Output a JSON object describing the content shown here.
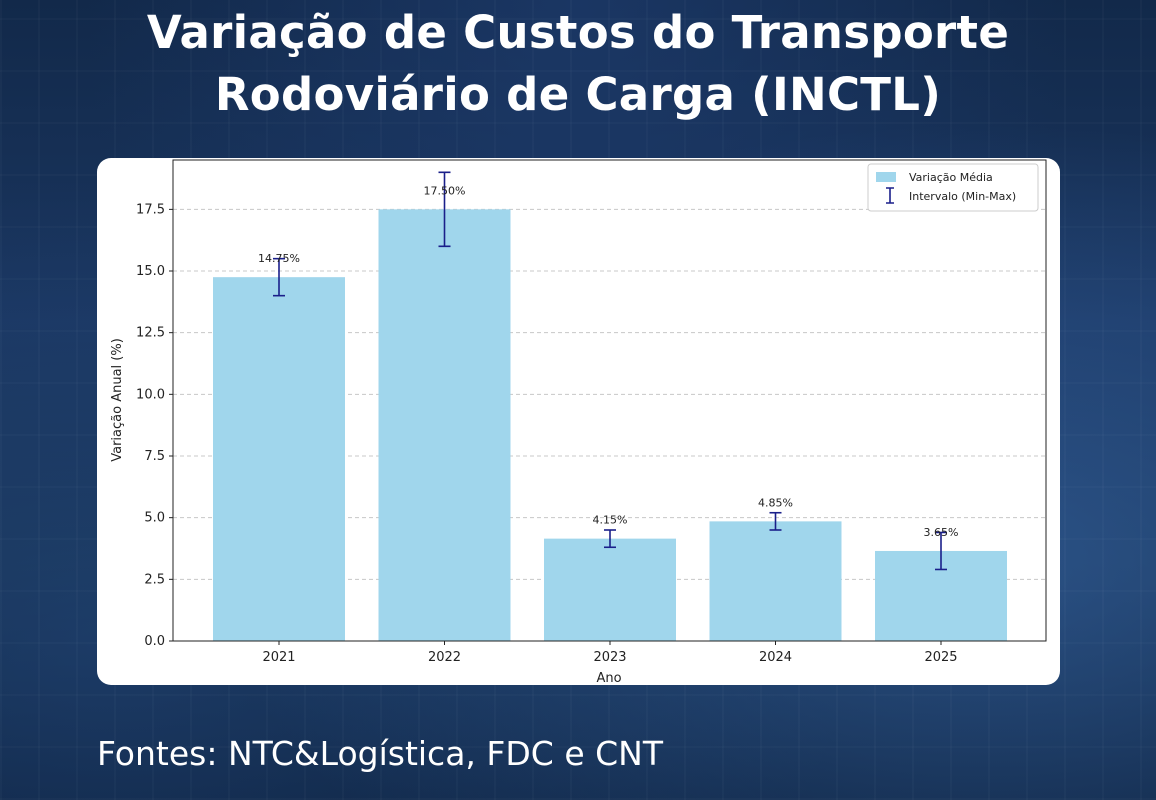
{
  "title": {
    "line1": "Variação de Custos do Transporte",
    "line2": "Rodoviário de Carga (INCTL)"
  },
  "sources": "Fontes: NTC&Logística, FDC e CNT",
  "colors": {
    "bar": "#a0d6ec",
    "errorbar": "#1a1f8a",
    "grid": "#c8c8c8"
  },
  "chart_data": {
    "type": "bar",
    "categories": [
      "2021",
      "2022",
      "2023",
      "2024",
      "2025"
    ],
    "values": [
      14.75,
      17.5,
      4.15,
      4.85,
      3.65
    ],
    "error_min": [
      14.0,
      16.0,
      3.8,
      4.5,
      2.9
    ],
    "error_max": [
      15.5,
      19.0,
      4.5,
      5.2,
      4.4
    ],
    "data_labels": [
      "14.75%",
      "17.50%",
      "4.15%",
      "4.85%",
      "3.65%"
    ],
    "xlabel": "Ano",
    "ylabel": "Variação Anual (%)",
    "ylim": [
      0,
      19.5
    ],
    "yticks": [
      0.0,
      2.5,
      5.0,
      7.5,
      10.0,
      12.5,
      15.0,
      17.5
    ],
    "ytick_labels": [
      "0.0",
      "2.5",
      "5.0",
      "7.5",
      "10.0",
      "12.5",
      "15.0",
      "17.5"
    ],
    "grid": "y-dashed",
    "legend": {
      "position": "top-right",
      "entries": [
        "Variação Média",
        "Intervalo (Min-Max)"
      ]
    }
  }
}
